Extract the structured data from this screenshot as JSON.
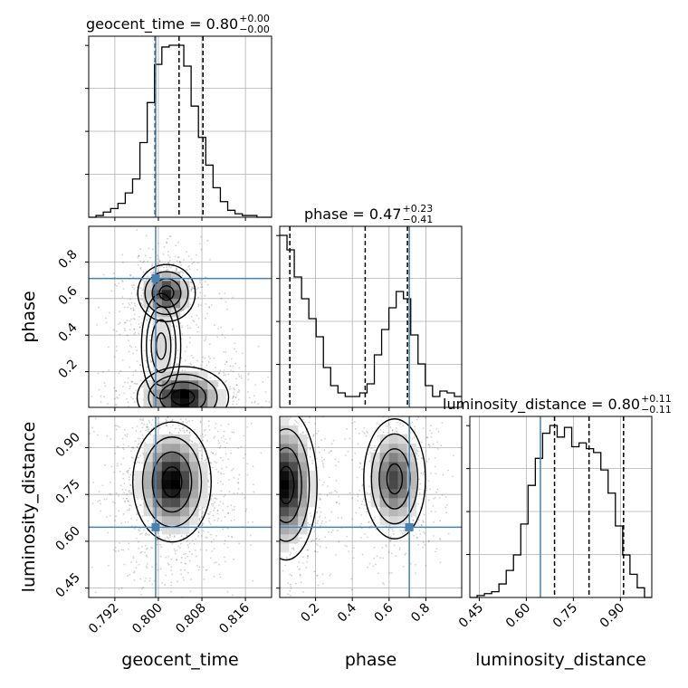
{
  "chart_data": {
    "type": "corner",
    "parameters": [
      "geocent_time",
      "phase",
      "luminosity_distance"
    ],
    "truths": {
      "geocent_time": 0.7995,
      "phase": 0.71,
      "luminosity_distance": 0.645
    },
    "ranges": {
      "geocent_time": [
        0.7872,
        0.8208
      ],
      "phase": [
        0.005,
        0.995
      ],
      "luminosity_distance": [
        0.42,
        1.0
      ]
    },
    "ticks": {
      "geocent_time": [
        "0.792",
        "0.800",
        "0.808",
        "0.816"
      ],
      "phase": [
        "0.2",
        "0.4",
        "0.6",
        "0.8"
      ],
      "luminosity_distance": [
        "0.45",
        "0.60",
        "0.75",
        "0.90"
      ]
    },
    "tick_values": {
      "geocent_time": [
        0.792,
        0.8,
        0.808,
        0.816
      ],
      "phase": [
        0.2,
        0.4,
        0.6,
        0.8
      ],
      "luminosity_distance": [
        0.45,
        0.6,
        0.75,
        0.9
      ]
    },
    "titles": [
      {
        "param": "geocent_time",
        "text": "geocent_time = 0.80",
        "plus": "+0.00",
        "minus": "−0.00"
      },
      {
        "param": "phase",
        "text": "phase = 0.47",
        "plus": "+0.23",
        "minus": "−0.41"
      },
      {
        "param": "luminosity_distance",
        "text": "luminosity_distance = 0.80",
        "plus": "+0.11",
        "minus": "−0.11"
      }
    ],
    "quantiles": {
      "geocent_time": [
        0.7994,
        0.8038,
        0.8082
      ],
      "phase": [
        0.06,
        0.47,
        0.7
      ],
      "luminosity_distance": [
        0.69,
        0.8,
        0.91
      ]
    },
    "histograms": {
      "geocent_time": {
        "edges_range": [
          0.7872,
          0.8208
        ],
        "counts": [
          0,
          0.01,
          0.03,
          0.05,
          0.08,
          0.14,
          0.22,
          0.43,
          0.66,
          0.88,
          0.98,
          0.99,
          0.99,
          0.87,
          0.64,
          0.46,
          0.3,
          0.17,
          0.09,
          0.04,
          0.02,
          0.01,
          0.01,
          0,
          0
        ]
      },
      "phase": {
        "edges_range": [
          0.005,
          0.995
        ],
        "counts": [
          0.95,
          0.87,
          0.72,
          0.6,
          0.49,
          0.39,
          0.22,
          0.12,
          0.08,
          0.06,
          0.06,
          0.08,
          0.13,
          0.29,
          0.43,
          0.55,
          0.64,
          0.6,
          0.4,
          0.24,
          0.12,
          0.06,
          0.09,
          0.08,
          0.06
        ]
      },
      "luminosity_distance": {
        "edges_range": [
          0.42,
          1.0
        ],
        "counts": [
          0,
          0.01,
          0.02,
          0.03,
          0.07,
          0.14,
          0.22,
          0.38,
          0.58,
          0.72,
          0.85,
          0.89,
          0.83,
          0.88,
          0.78,
          0.8,
          0.77,
          0.75,
          0.66,
          0.54,
          0.37,
          0.22,
          0.12,
          0.05,
          0
        ]
      }
    },
    "density_modes": {
      "phase_vs_geocent_time": [
        {
          "x": 0.8015,
          "y": 0.63,
          "sx": 0.0022,
          "sy": 0.065,
          "w": 1.0
        },
        {
          "x": 0.8045,
          "y": 0.06,
          "sx": 0.0035,
          "sy": 0.07,
          "w": 1.2
        },
        {
          "x": 0.8005,
          "y": 0.34,
          "sx": 0.0015,
          "sy": 0.12,
          "w": 0.25
        }
      ],
      "luminosity_distance_vs_geocent_time": [
        {
          "x": 0.8025,
          "y": 0.79,
          "sx": 0.003,
          "sy": 0.08,
          "w": 1.0
        }
      ],
      "luminosity_distance_vs_phase": [
        {
          "x": 0.04,
          "y": 0.78,
          "sx": 0.07,
          "sy": 0.1,
          "w": 1.0
        },
        {
          "x": 0.63,
          "y": 0.8,
          "sx": 0.07,
          "sy": 0.08,
          "w": 0.75
        }
      ]
    },
    "axis_labels": {
      "geocent_time": "geocent_time",
      "phase": "phase",
      "luminosity_distance": "luminosity_distance"
    },
    "grid": true,
    "colors": {
      "truth": "#4682b4",
      "hist": "#000000",
      "quantile": "#000000",
      "contour": "#000000",
      "grid": "#b0b0b0"
    }
  }
}
